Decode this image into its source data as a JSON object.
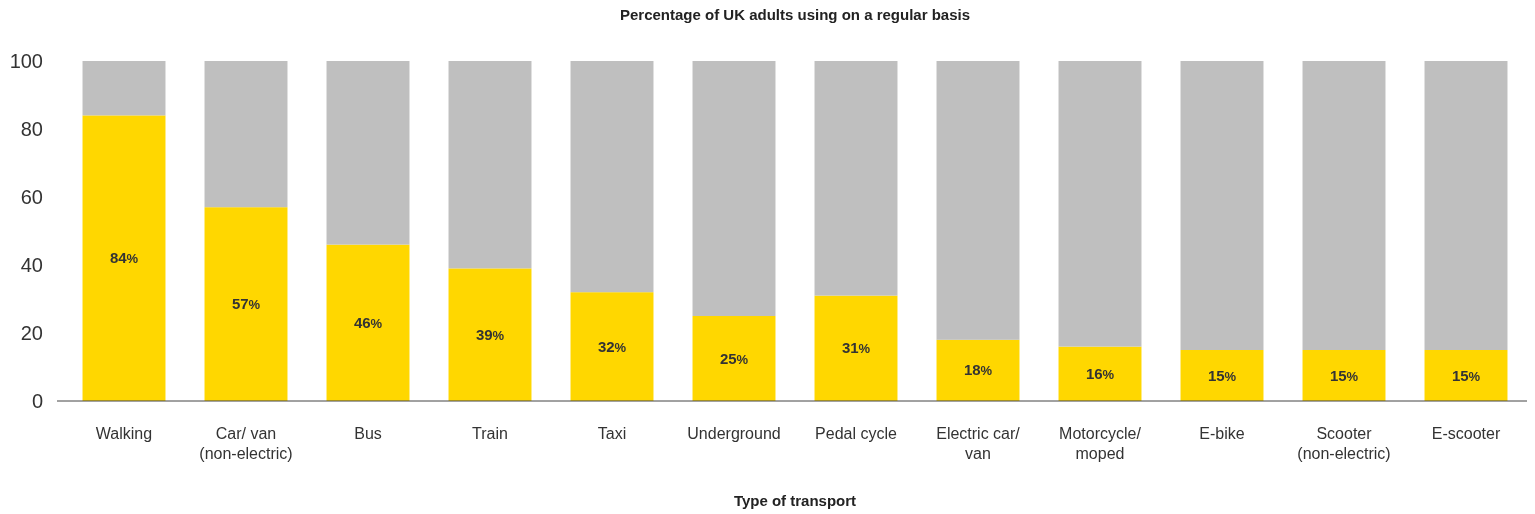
{
  "chart_data": {
    "type": "bar",
    "title": "Percentage of UK adults using on a regular basis",
    "xlabel": "Type of transport",
    "categories": [
      "Walking",
      "Car/ van (non-electric)",
      "Bus",
      "Train",
      "Taxi",
      "Underground",
      "Pedal cycle",
      "Electric car/ van",
      "Motorcycle/ moped",
      "E-bike",
      "Scooter (non-electric)",
      "E-scooter"
    ],
    "stacked": true,
    "series": [
      {
        "color": "#ffd700",
        "values": [
          84,
          57,
          46,
          39,
          32,
          25,
          31,
          18,
          16,
          15,
          15,
          15
        ],
        "value_labels": [
          "84%",
          "57%",
          "46%",
          "39%",
          "32%",
          "25%",
          "31%",
          "18%",
          "16%",
          "15%",
          "15%",
          "15%"
        ]
      },
      {
        "color": "#bfbfbf",
        "values": [
          16,
          43,
          54,
          61,
          68,
          75,
          69,
          82,
          84,
          85,
          85,
          85
        ]
      }
    ],
    "ylim": [
      0,
      100
    ],
    "yticks": [
      0,
      20,
      40,
      60,
      80,
      100
    ],
    "grid": false
  }
}
